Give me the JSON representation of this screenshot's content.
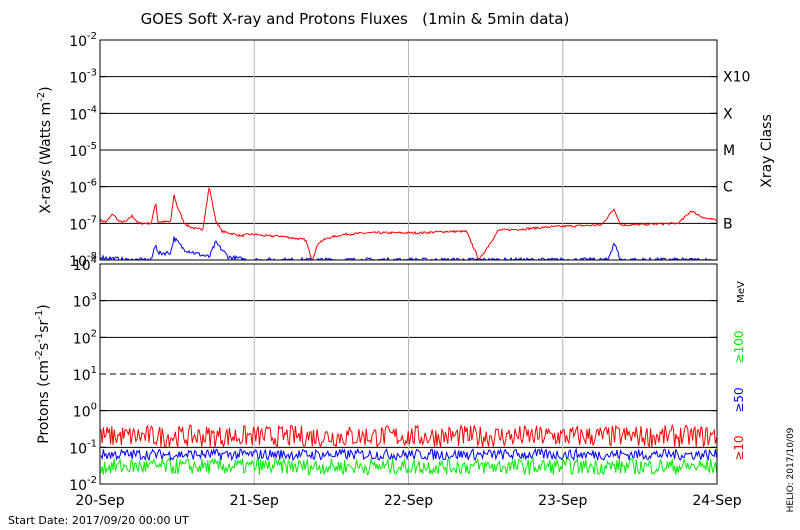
{
  "title": "GOES Soft X-ray and Protons Fluxes   (1min & 5min data)",
  "start_date": "Start Date: 2017/09/20 00:00 UT",
  "credit": "HELIO: 2017/10/09",
  "colors": {
    "xray_long": "#ff0000",
    "xray_short": "#0000ff",
    "p10": "#ff0000",
    "p50": "#0000ff",
    "p100": "#00ee00",
    "grid_vertical": "#b4b4b4"
  },
  "chart_data": [
    {
      "type": "line",
      "panel": "xrays",
      "ylabel_base": "X-rays (Watts m",
      "ylabel_sup": "-2",
      "ylabel_end": ")",
      "yscale": "log",
      "ylim": [
        1e-08,
        0.01
      ],
      "yticks": [
        {
          "value": 0.01,
          "base": "10",
          "exp": "-2"
        },
        {
          "value": 0.001,
          "base": "10",
          "exp": "-3"
        },
        {
          "value": 0.0001,
          "base": "10",
          "exp": "-4"
        },
        {
          "value": 1e-05,
          "base": "10",
          "exp": "-5"
        },
        {
          "value": 1e-06,
          "base": "10",
          "exp": "-6"
        },
        {
          "value": 1e-07,
          "base": "10",
          "exp": "-7"
        },
        {
          "value": 1e-08,
          "base": "10",
          "exp": "-8"
        }
      ],
      "right_axis_label": "Xray Class",
      "classes": [
        {
          "label": "X10",
          "value": 0.001
        },
        {
          "label": "X",
          "value": 0.0001
        },
        {
          "label": "M",
          "value": 1e-05
        },
        {
          "label": "C",
          "value": 1e-06
        },
        {
          "label": "B",
          "value": 1e-07
        }
      ],
      "xlim": [
        "2017-09-20 00:00",
        "2017-09-24 00:00"
      ],
      "series": [
        {
          "key": "long",
          "x": [
            "2017-09-20 00:00",
            "2017-09-20 01:00",
            "2017-09-20 02:00",
            "2017-09-20 03:00",
            "2017-09-20 04:00",
            "2017-09-20 05:00",
            "2017-09-20 06:00",
            "2017-09-20 07:00",
            "2017-09-20 08:00",
            "2017-09-20 08:40",
            "2017-09-20 09:00",
            "2017-09-20 10:00",
            "2017-09-20 11:00",
            "2017-09-20 11:30",
            "2017-09-20 12:00",
            "2017-09-20 13:00",
            "2017-09-20 13:30",
            "2017-09-20 14:00",
            "2017-09-20 15:00",
            "2017-09-20 16:00",
            "2017-09-20 17:00",
            "2017-09-20 18:00",
            "2017-09-20 19:00",
            "2017-09-20 20:00",
            "2017-09-20 21:00",
            "2017-09-20 22:00",
            "2017-09-20 23:00",
            "2017-09-21 00:00",
            "2017-09-21 02:00",
            "2017-09-21 04:00",
            "2017-09-21 06:00",
            "2017-09-21 08:00",
            "2017-09-21 09:00",
            "2017-09-21 10:00",
            "2017-09-21 11:30",
            "2017-09-21 14:00",
            "2017-09-21 18:00",
            "2017-09-21 22:00",
            "2017-09-22 02:00",
            "2017-09-22 06:00",
            "2017-09-22 09:00",
            "2017-09-22 11:00",
            "2017-09-22 14:00",
            "2017-09-22 18:00",
            "2017-09-22 22:00",
            "2017-09-23 02:00",
            "2017-09-23 06:00",
            "2017-09-23 08:00",
            "2017-09-23 09:00",
            "2017-09-23 10:00",
            "2017-09-23 14:00",
            "2017-09-23 18:00",
            "2017-09-23 20:00",
            "2017-09-23 22:00",
            "2017-09-24 00:00"
          ],
          "y": [
            1.2e-07,
            1.1e-07,
            1.8e-07,
            1.1e-07,
            1.1e-07,
            1.6e-07,
            1e-07,
            1e-07,
            1e-07,
            4e-07,
            1.1e-07,
            1.1e-07,
            1.1e-07,
            6e-07,
            3e-07,
            1.1e-07,
            9e-08,
            8e-08,
            7e-08,
            7e-08,
            1e-06,
            1.2e-07,
            6e-08,
            5.5e-08,
            5e-08,
            4.5e-08,
            5e-08,
            5e-08,
            4.5e-08,
            4.5e-08,
            4e-08,
            3.5e-08,
            1e-08,
            3e-08,
            4e-08,
            5e-08,
            5.5e-08,
            5.5e-08,
            5.5e-08,
            6e-08,
            6e-08,
            1e-08,
            6.5e-08,
            7e-08,
            8e-08,
            8.5e-08,
            9e-08,
            2.5e-07,
            9e-08,
            9e-08,
            9.5e-08,
            1e-07,
            2.2e-07,
            1.4e-07,
            1.2e-07
          ]
        },
        {
          "key": "short",
          "x": [
            "2017-09-20 00:00",
            "2017-09-20 02:00",
            "2017-09-20 04:00",
            "2017-09-20 06:00",
            "2017-09-20 08:00",
            "2017-09-20 08:40",
            "2017-09-20 09:00",
            "2017-09-20 11:00",
            "2017-09-20 11:30",
            "2017-09-20 13:00",
            "2017-09-20 15:00",
            "2017-09-20 17:00",
            "2017-09-20 18:00",
            "2017-09-20 20:00",
            "2017-09-20 23:00",
            "2017-09-21 03:00",
            "2017-09-21 06:00",
            "2017-09-21 10:00",
            "2017-09-21 16:00",
            "2017-09-21 22:00",
            "2017-09-22 06:00",
            "2017-09-22 14:00",
            "2017-09-22 20:00",
            "2017-09-23 02:00",
            "2017-09-23 07:00",
            "2017-09-23 08:00",
            "2017-09-23 09:00",
            "2017-09-23 14:00",
            "2017-09-24 00:00"
          ],
          "y": [
            1.2e-08,
            1.1e-08,
            1e-08,
            1e-08,
            1e-08,
            3e-08,
            1.5e-08,
            1.6e-08,
            4e-08,
            2e-08,
            1.5e-08,
            1.2e-08,
            3e-08,
            1.2e-08,
            1e-08,
            1e-08,
            1e-08,
            1e-08,
            1e-08,
            1e-08,
            1e-08,
            1e-08,
            1e-08,
            1e-08,
            1e-08,
            3e-08,
            1e-08,
            1e-08,
            1e-08
          ]
        }
      ]
    },
    {
      "type": "line",
      "panel": "protons",
      "ylabel_base": "Protons (cm",
      "ylabel_sup1": "-2",
      "ylabel_mid1": "s",
      "ylabel_sup2": "-1",
      "ylabel_mid2": "sr",
      "ylabel_sup3": "-1",
      "ylabel_end": ")",
      "yscale": "log",
      "ylim": [
        0.01,
        10000
      ],
      "yticks": [
        {
          "value": 10000,
          "base": "10",
          "exp": "4"
        },
        {
          "value": 1000,
          "base": "10",
          "exp": "3"
        },
        {
          "value": 100,
          "base": "10",
          "exp": "2"
        },
        {
          "value": 10,
          "base": "10",
          "exp": "1"
        },
        {
          "value": 1,
          "base": "10",
          "exp": "0"
        },
        {
          "value": 0.1,
          "base": "10",
          "exp": "-1"
        },
        {
          "value": 0.01,
          "base": "10",
          "exp": "-2"
        }
      ],
      "threshold": 10,
      "unit_label": "MeV",
      "legend": [
        {
          "key": "p100",
          "label": "≥100"
        },
        {
          "key": "p50",
          "label": "≥50"
        },
        {
          "key": "p10",
          "label": "≥10"
        }
      ],
      "xlim": [
        "2017-09-20 00:00",
        "2017-09-24 00:00"
      ],
      "series": [
        {
          "key": "p10",
          "typical": 0.2,
          "range": [
            0.1,
            0.4
          ]
        },
        {
          "key": "p50",
          "typical": 0.06,
          "range": [
            0.045,
            0.09
          ]
        },
        {
          "key": "p100",
          "typical": 0.03,
          "range": [
            0.018,
            0.05
          ]
        }
      ]
    }
  ],
  "x_axis": {
    "ticks": [
      {
        "value": "2017-09-20 00:00",
        "label": "20-Sep"
      },
      {
        "value": "2017-09-21 00:00",
        "label": "21-Sep"
      },
      {
        "value": "2017-09-22 00:00",
        "label": "22-Sep"
      },
      {
        "value": "2017-09-23 00:00",
        "label": "23-Sep"
      },
      {
        "value": "2017-09-24 00:00",
        "label": "24-Sep"
      }
    ]
  }
}
